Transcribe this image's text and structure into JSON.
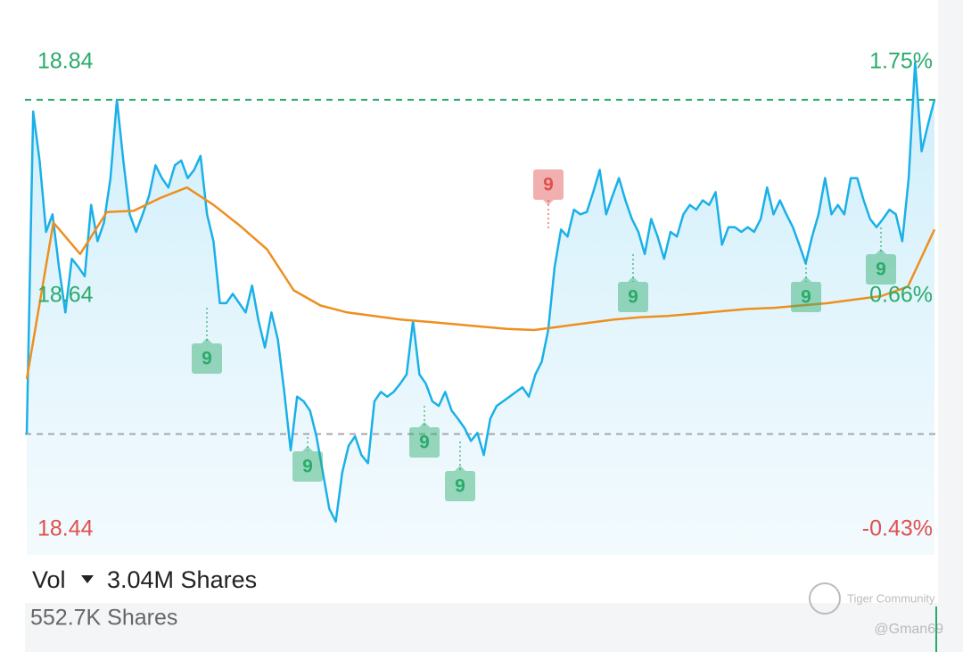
{
  "chart_data": {
    "type": "line",
    "ylim": [
      18.44,
      18.84
    ],
    "yticks": [
      18.44,
      18.64,
      18.84
    ],
    "y2lim": [
      -0.43,
      1.75
    ],
    "y2ticks": [
      {
        "value": -0.43,
        "label": "-0.43%"
      },
      {
        "value": 0.66,
        "label": "0.66%"
      },
      {
        "value": 1.75,
        "label": "1.75%"
      }
    ],
    "up_color": "#2bab6b",
    "down_color": "#e0504d",
    "reference_lines": [
      {
        "value": 18.808,
        "color": "#2bab6b"
      },
      {
        "value": 18.522,
        "color": "#a8a8a8"
      }
    ],
    "series": [
      {
        "color": "#1ab0e8",
        "area": true,
        "values": [
          18.522,
          18.798,
          18.756,
          18.695,
          18.71,
          18.665,
          18.626,
          18.672,
          18.665,
          18.657,
          18.718,
          18.687,
          18.703,
          18.741,
          18.808,
          18.756,
          18.71,
          18.695,
          18.71,
          18.726,
          18.752,
          18.741,
          18.733,
          18.752,
          18.756,
          18.741,
          18.748,
          18.76,
          18.71,
          18.687,
          18.634,
          18.634,
          18.642,
          18.634,
          18.626,
          18.649,
          18.619,
          18.596,
          18.626,
          18.603,
          18.558,
          18.508,
          18.554,
          18.55,
          18.542,
          18.52,
          18.489,
          18.458,
          18.447,
          18.489,
          18.512,
          18.52,
          18.504,
          18.497,
          18.55,
          18.558,
          18.554,
          18.558,
          18.565,
          18.573,
          18.619,
          18.573,
          18.565,
          18.55,
          18.546,
          18.558,
          18.542,
          18.535,
          18.527,
          18.516,
          18.523,
          18.504,
          18.535,
          18.546,
          18.55,
          18.554,
          18.558,
          18.562,
          18.554,
          18.573,
          18.584,
          18.611,
          18.665,
          18.697,
          18.691,
          18.714,
          18.71,
          18.712,
          18.729,
          18.748,
          18.71,
          18.726,
          18.741,
          18.722,
          18.706,
          18.695,
          18.676,
          18.706,
          18.691,
          18.672,
          18.695,
          18.691,
          18.71,
          18.718,
          18.714,
          18.722,
          18.718,
          18.729,
          18.684,
          18.699,
          18.699,
          18.695,
          18.699,
          18.695,
          18.706,
          18.733,
          18.71,
          18.722,
          18.71,
          18.699,
          18.684,
          18.668,
          18.691,
          18.71,
          18.741,
          18.71,
          18.718,
          18.71,
          18.741,
          18.741,
          18.722,
          18.706,
          18.699,
          18.706,
          18.714,
          18.71,
          18.687,
          18.741,
          18.84,
          18.764,
          18.787,
          18.808
        ]
      },
      {
        "color": "#ee8f1f",
        "area": false,
        "values": [
          18.569,
          18.703,
          18.676,
          18.712,
          18.713,
          18.724,
          18.733,
          18.718,
          18.7,
          18.68,
          18.645,
          18.632,
          18.626,
          18.623,
          18.62,
          18.618,
          18.616,
          18.614,
          18.612,
          18.611,
          18.614,
          18.617,
          18.62,
          18.622,
          18.623,
          18.625,
          18.627,
          18.629,
          18.63,
          18.632,
          18.634,
          18.637,
          18.64,
          18.648,
          18.697
        ]
      }
    ],
    "annotations": [
      {
        "text": "9",
        "color": "#2bab6b"
      },
      {
        "text": "9",
        "color": "#2bab6b"
      },
      {
        "text": "9",
        "color": "#2bab6b"
      },
      {
        "text": "9",
        "color": "#2bab6b"
      },
      {
        "text": "9",
        "color": "#e0504d"
      },
      {
        "text": "9",
        "color": "#2bab6b"
      },
      {
        "text": "9",
        "color": "#2bab6b"
      },
      {
        "text": "9",
        "color": "#2bab6b"
      }
    ]
  },
  "footer": {
    "indicator": "Vol",
    "total_volume": "3.04M Shares",
    "last_volume": "552.7K Shares",
    "watermark": "Tiger Community",
    "author": "@Gman69"
  }
}
